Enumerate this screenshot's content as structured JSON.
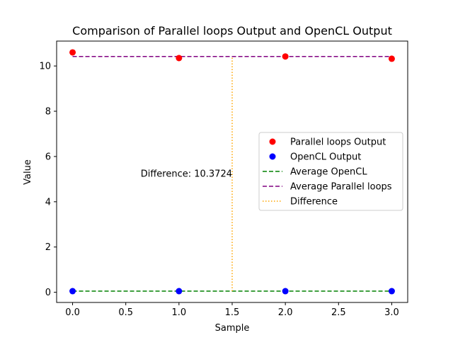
{
  "chart_data": {
    "type": "scatter",
    "title": "Comparison of Parallel loops Output and OpenCL Output",
    "xlabel": "Sample",
    "ylabel": "Value",
    "xlim": [
      -0.15,
      3.15
    ],
    "ylim": [
      -0.45,
      11.1
    ],
    "xticks": [
      0.0,
      0.5,
      1.0,
      1.5,
      2.0,
      2.5,
      3.0
    ],
    "xtick_labels": [
      "0.0",
      "0.5",
      "1.0",
      "1.5",
      "2.0",
      "2.5",
      "3.0"
    ],
    "yticks": [
      0,
      2,
      4,
      6,
      8,
      10
    ],
    "ytick_labels": [
      "0",
      "2",
      "4",
      "6",
      "8",
      "10"
    ],
    "grid": false,
    "legend_placement": "center-right",
    "series": [
      {
        "name": "Parallel loops Output",
        "kind": "scatter",
        "color": "#ff0000",
        "x": [
          0,
          1,
          2,
          3
        ],
        "y": [
          10.6,
          10.35,
          10.42,
          10.32
        ]
      },
      {
        "name": "OpenCL Output",
        "kind": "scatter",
        "color": "#0000ff",
        "x": [
          0,
          1,
          2,
          3
        ],
        "y": [
          0.05,
          0.05,
          0.05,
          0.05
        ]
      },
      {
        "name": "Average OpenCL",
        "kind": "hline",
        "style": "dashed",
        "color": "#008000",
        "x": [
          0,
          3
        ],
        "y": 0.05
      },
      {
        "name": "Average Parallel loops",
        "kind": "hline",
        "style": "dashed",
        "color": "#800080",
        "x": [
          0,
          3
        ],
        "y": 10.42
      },
      {
        "name": "Difference",
        "kind": "vline",
        "style": "dotted",
        "color": "#ffa500",
        "x": 1.5,
        "y": [
          0.05,
          10.42
        ]
      }
    ],
    "annotations": [
      {
        "text": "Difference: 10.3724",
        "x": 1.5,
        "y": 5.23
      }
    ]
  }
}
